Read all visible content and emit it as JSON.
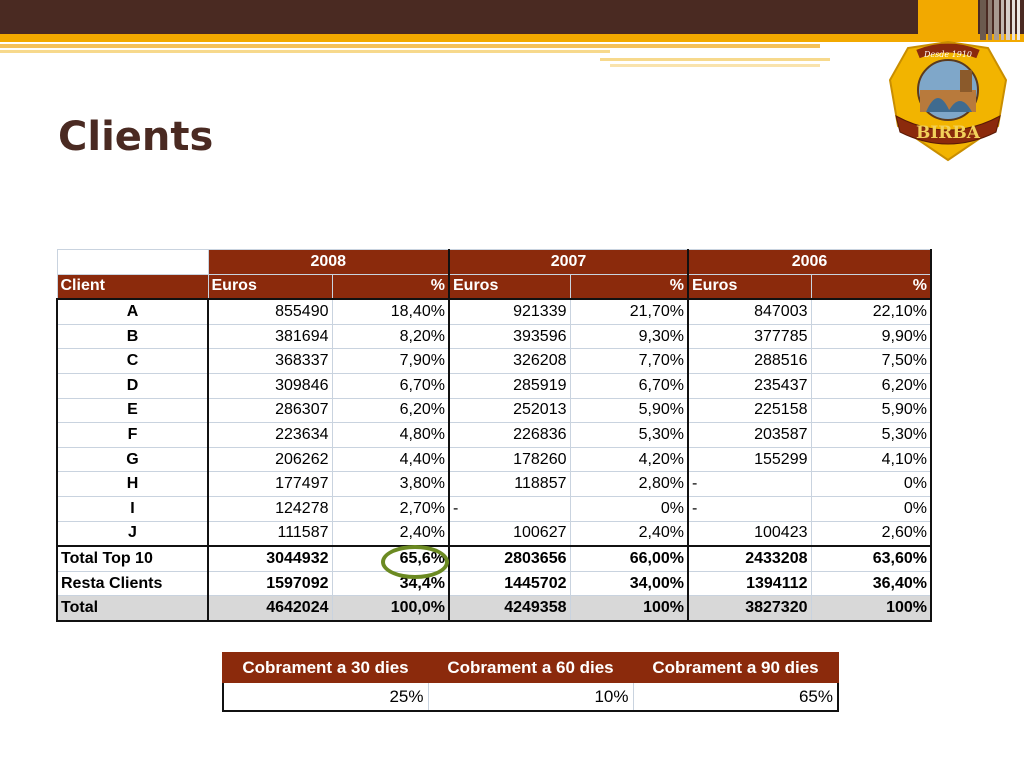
{
  "slide": {
    "title": "Clients",
    "accent_colors": {
      "brown": "#4a2a22",
      "gold": "#f2a900",
      "header_red": "#8b2a0c",
      "circle_green": "#6b8a22"
    }
  },
  "logo": {
    "top_text": "Desde 1910",
    "brand": "BIRBA"
  },
  "clients_table": {
    "years": [
      "2008",
      "2007",
      "2006"
    ],
    "headers": {
      "client": "Client",
      "euros": "Euros",
      "pct": "%"
    },
    "rows": [
      {
        "client": "A",
        "v2008": "855490",
        "p2008": "18,40%",
        "v2007": "921339",
        "p2007": "21,70%",
        "v2006": "847003",
        "p2006": "22,10%"
      },
      {
        "client": "B",
        "v2008": "381694",
        "p2008": "8,20%",
        "v2007": "393596",
        "p2007": "9,30%",
        "v2006": "377785",
        "p2006": "9,90%"
      },
      {
        "client": "C",
        "v2008": "368337",
        "p2008": "7,90%",
        "v2007": "326208",
        "p2007": "7,70%",
        "v2006": "288516",
        "p2006": "7,50%"
      },
      {
        "client": "D",
        "v2008": "309846",
        "p2008": "6,70%",
        "v2007": "285919",
        "p2007": "6,70%",
        "v2006": "235437",
        "p2006": "6,20%"
      },
      {
        "client": "E",
        "v2008": "286307",
        "p2008": "6,20%",
        "v2007": "252013",
        "p2007": "5,90%",
        "v2006": "225158",
        "p2006": "5,90%"
      },
      {
        "client": "F",
        "v2008": "223634",
        "p2008": "4,80%",
        "v2007": "226836",
        "p2007": "5,30%",
        "v2006": "203587",
        "p2006": "5,30%"
      },
      {
        "client": "G",
        "v2008": "206262",
        "p2008": "4,40%",
        "v2007": "178260",
        "p2007": "4,20%",
        "v2006": "155299",
        "p2006": "4,10%"
      },
      {
        "client": "H",
        "v2008": "177497",
        "p2008": "3,80%",
        "v2007": "118857",
        "p2007": "2,80%",
        "v2006": "-",
        "p2006": "0%"
      },
      {
        "client": "I",
        "v2008": "124278",
        "p2008": "2,70%",
        "v2007": "-",
        "p2007": "0%",
        "v2006": "-",
        "p2006": "0%"
      },
      {
        "client": "J",
        "v2008": "111587",
        "p2008": "2,40%",
        "v2007": "100627",
        "p2007": "2,40%",
        "v2006": "100423",
        "p2006": "2,60%"
      }
    ],
    "totals": [
      {
        "client": "Total Top 10",
        "v2008": "3044932",
        "p2008": "65,6%",
        "v2007": "2803656",
        "p2007": "66,00%",
        "v2006": "2433208",
        "p2006": "63,60%"
      },
      {
        "client": "Resta Clients",
        "v2008": "1597092",
        "p2008": "34,4%",
        "v2007": "1445702",
        "p2007": "34,00%",
        "v2006": "1394112",
        "p2006": "36,40%"
      },
      {
        "client": "Total",
        "v2008": "4642024",
        "p2008": "100,0%",
        "v2007": "4249358",
        "p2007": "100%",
        "v2006": "3827320",
        "p2006": "100%"
      }
    ]
  },
  "collection_table": {
    "headers": [
      "Cobrament a 30 dies",
      "Cobrament a 60 dies",
      "Cobrament a 90 dies"
    ],
    "values": [
      "25%",
      "10%",
      "65%"
    ]
  }
}
